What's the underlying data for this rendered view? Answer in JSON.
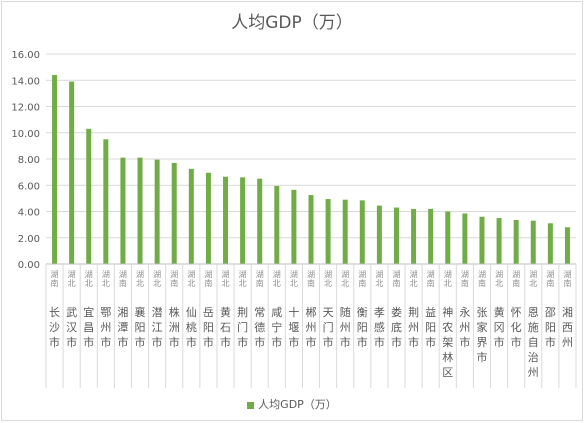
{
  "chart_data": {
    "type": "bar",
    "title": "人均GDP（万）",
    "xlabel": "",
    "ylabel": "",
    "ylim": [
      0,
      16
    ],
    "yticks": [
      "0.00",
      "2.00",
      "4.00",
      "6.00",
      "8.00",
      "10.00",
      "12.00",
      "14.00",
      "16.00"
    ],
    "grid": true,
    "legend": "bottom",
    "bar_color": "#70ad47",
    "categories": [
      {
        "prov": "湖南",
        "city": "长沙市"
      },
      {
        "prov": "湖北",
        "city": "武汉市"
      },
      {
        "prov": "湖北",
        "city": "宜昌市"
      },
      {
        "prov": "湖北",
        "city": "鄂州市"
      },
      {
        "prov": "湖南",
        "city": "湘潭市"
      },
      {
        "prov": "湖北",
        "city": "襄阳市"
      },
      {
        "prov": "湖北",
        "city": "潜江市"
      },
      {
        "prov": "湖南",
        "city": "株洲市"
      },
      {
        "prov": "湖北",
        "city": "仙桃市"
      },
      {
        "prov": "湖南",
        "city": "岳阳市"
      },
      {
        "prov": "湖北",
        "city": "黄石市"
      },
      {
        "prov": "湖北",
        "city": "荆门市"
      },
      {
        "prov": "湖南",
        "city": "常德市"
      },
      {
        "prov": "湖北",
        "city": "咸宁市"
      },
      {
        "prov": "湖北",
        "city": "十堰市"
      },
      {
        "prov": "湖南",
        "city": "郴州市"
      },
      {
        "prov": "湖北",
        "city": "天门市"
      },
      {
        "prov": "湖北",
        "city": "随州市"
      },
      {
        "prov": "湖南",
        "city": "衡阳市"
      },
      {
        "prov": "湖北",
        "city": "孝感市"
      },
      {
        "prov": "湖南",
        "city": "娄底市"
      },
      {
        "prov": "湖北",
        "city": "荆州市"
      },
      {
        "prov": "湖南",
        "city": "益阳市"
      },
      {
        "prov": "湖北",
        "city": "神农架林区"
      },
      {
        "prov": "湖南",
        "city": "永州市"
      },
      {
        "prov": "湖南",
        "city": "张家界市"
      },
      {
        "prov": "湖北",
        "city": "黄冈市"
      },
      {
        "prov": "湖南",
        "city": "怀化市"
      },
      {
        "prov": "湖北",
        "city": "恩施自治州"
      },
      {
        "prov": "湖南",
        "city": "邵阳市"
      },
      {
        "prov": "湖南",
        "city": "湘西州"
      }
    ],
    "series": [
      {
        "name": "人均GDP（万）",
        "values": [
          14.4,
          13.9,
          10.3,
          9.5,
          8.1,
          8.1,
          7.95,
          7.7,
          7.25,
          6.95,
          6.65,
          6.6,
          6.5,
          5.95,
          5.65,
          5.25,
          4.95,
          4.9,
          4.85,
          4.45,
          4.3,
          4.2,
          4.2,
          4.0,
          3.85,
          3.6,
          3.5,
          3.35,
          3.3,
          3.1,
          2.8
        ]
      }
    ]
  }
}
